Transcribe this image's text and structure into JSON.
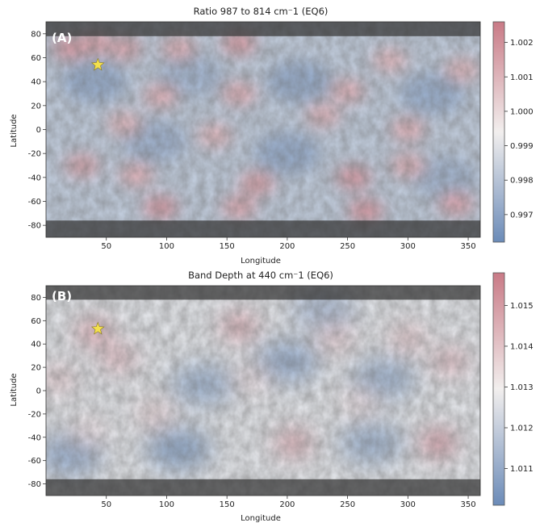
{
  "chart_data": [
    {
      "type": "heatmap",
      "panel_label": "(A)",
      "title": "Ratio 987 to 814 cm⁻1 (EQ6)",
      "xlabel": "Longitude",
      "ylabel": "Latitude",
      "xlim": [
        0,
        360
      ],
      "ylim": [
        -90,
        90
      ],
      "x_ticks": [
        50,
        100,
        150,
        200,
        250,
        300,
        350
      ],
      "y_ticks": [
        80,
        60,
        40,
        20,
        0,
        -20,
        -40,
        -60,
        -80
      ],
      "colorbar": {
        "range": [
          0.9962,
          1.0026
        ],
        "ticks": [
          1.002,
          1.001,
          1.0,
          0.999,
          0.998,
          0.997
        ],
        "tick_labels": [
          "1.002",
          "1.001",
          "1.000",
          "0.999",
          "0.998",
          "0.997"
        ],
        "colors": {
          "low": "#6b8bb8",
          "mid": "#f2efee",
          "high": "#c97a86"
        }
      },
      "marker": {
        "shape": "star",
        "lon": 43,
        "lat": 54,
        "color": "#f4e04d"
      },
      "hotspots": [
        {
          "lon": 20,
          "lat": 68,
          "v": 1.0018
        },
        {
          "lon": 40,
          "lat": 72,
          "v": 1.0016
        },
        {
          "lon": 65,
          "lat": 68,
          "v": 1.0014
        },
        {
          "lon": 160,
          "lat": 72,
          "v": 1.0017
        },
        {
          "lon": 110,
          "lat": 68,
          "v": 1.0012
        },
        {
          "lon": 285,
          "lat": 58,
          "v": 1.001
        },
        {
          "lon": 345,
          "lat": 50,
          "v": 1.001
        },
        {
          "lon": 95,
          "lat": 28,
          "v": 1.0012
        },
        {
          "lon": 160,
          "lat": 30,
          "v": 1.0013
        },
        {
          "lon": 250,
          "lat": 32,
          "v": 1.0012
        },
        {
          "lon": 230,
          "lat": 12,
          "v": 1.0011
        },
        {
          "lon": 65,
          "lat": 5,
          "v": 1.001
        },
        {
          "lon": 140,
          "lat": -5,
          "v": 1.001
        },
        {
          "lon": 300,
          "lat": 0,
          "v": 1.0012
        },
        {
          "lon": 30,
          "lat": -30,
          "v": 1.0014
        },
        {
          "lon": 75,
          "lat": -38,
          "v": 1.0012
        },
        {
          "lon": 175,
          "lat": -45,
          "v": 1.0016
        },
        {
          "lon": 255,
          "lat": -40,
          "v": 1.0018
        },
        {
          "lon": 300,
          "lat": -30,
          "v": 1.0012
        },
        {
          "lon": 95,
          "lat": -65,
          "v": 1.0018
        },
        {
          "lon": 160,
          "lat": -65,
          "v": 1.0014
        },
        {
          "lon": 265,
          "lat": -68,
          "v": 1.0019
        },
        {
          "lon": 340,
          "lat": -62,
          "v": 1.0015
        }
      ],
      "coldspots": [
        {
          "lon": 40,
          "lat": 40,
          "v": 0.9972
        },
        {
          "lon": 120,
          "lat": 45,
          "v": 0.9975
        },
        {
          "lon": 210,
          "lat": 40,
          "v": 0.9972
        },
        {
          "lon": 320,
          "lat": 30,
          "v": 0.9973
        },
        {
          "lon": 90,
          "lat": -10,
          "v": 0.9974
        },
        {
          "lon": 200,
          "lat": -20,
          "v": 0.9972
        },
        {
          "lon": 330,
          "lat": -40,
          "v": 0.9975
        }
      ],
      "base_value": 0.9982
    },
    {
      "type": "heatmap",
      "panel_label": "(B)",
      "title": "Band Depth at 440 cm⁻1 (EQ6)",
      "xlabel": "Longitude",
      "ylabel": "Latitude",
      "xlim": [
        0,
        360
      ],
      "ylim": [
        -90,
        90
      ],
      "x_ticks": [
        50,
        100,
        150,
        200,
        250,
        300,
        350
      ],
      "y_ticks": [
        80,
        60,
        40,
        20,
        0,
        -20,
        -40,
        -60,
        -80
      ],
      "colorbar": {
        "range": [
          1.0101,
          1.0158
        ],
        "ticks": [
          1.015,
          1.014,
          1.013,
          1.012,
          1.011
        ],
        "tick_labels": [
          "1.015",
          "1.014",
          "1.013",
          "1.012",
          "1.011"
        ],
        "colors": {
          "low": "#6b8bb8",
          "mid": "#f2efee",
          "high": "#c97a86"
        }
      },
      "marker": {
        "shape": "star",
        "lon": 43,
        "lat": 53,
        "color": "#f4e04d"
      },
      "hotspots": [
        {
          "lon": 40,
          "lat": 50,
          "v": 1.015
        },
        {
          "lon": 60,
          "lat": 28,
          "v": 1.0145
        },
        {
          "lon": 10,
          "lat": 10,
          "v": 1.014
        },
        {
          "lon": 160,
          "lat": 55,
          "v": 1.015
        },
        {
          "lon": 240,
          "lat": 45,
          "v": 1.014
        },
        {
          "lon": 300,
          "lat": 45,
          "v": 1.0142
        },
        {
          "lon": 335,
          "lat": 25,
          "v": 1.0145
        },
        {
          "lon": 170,
          "lat": 10,
          "v": 1.0135
        },
        {
          "lon": 90,
          "lat": -20,
          "v": 1.0138
        },
        {
          "lon": 205,
          "lat": -45,
          "v": 1.015
        },
        {
          "lon": 325,
          "lat": -45,
          "v": 1.0155
        },
        {
          "lon": 35,
          "lat": -35,
          "v": 1.0135
        },
        {
          "lon": 260,
          "lat": -10,
          "v": 1.0135
        }
      ],
      "coldspots": [
        {
          "lon": 20,
          "lat": -55,
          "v": 1.011
        },
        {
          "lon": 110,
          "lat": -50,
          "v": 1.0108
        },
        {
          "lon": 130,
          "lat": 5,
          "v": 1.0112
        },
        {
          "lon": 200,
          "lat": 25,
          "v": 1.011
        },
        {
          "lon": 280,
          "lat": 10,
          "v": 1.0112
        },
        {
          "lon": 270,
          "lat": -45,
          "v": 1.0112
        },
        {
          "lon": 230,
          "lat": 70,
          "v": 1.0115
        }
      ],
      "base_value": 1.0126
    }
  ]
}
